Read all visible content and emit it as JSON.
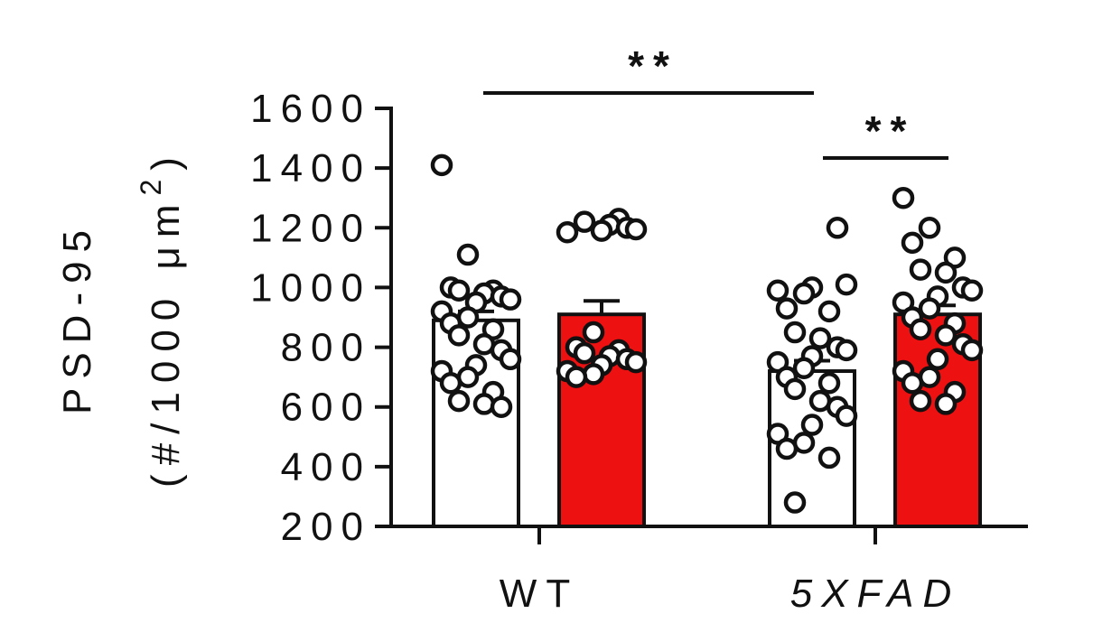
{
  "chart_data": {
    "type": "bar",
    "ylabel_line1": "PSD-95",
    "ylabel_line2_prefix": "(#/1000 μm",
    "ylabel_superscript": "2",
    "ylabel_line2_suffix": ")",
    "yticks": [
      "200",
      "400",
      "600",
      "800",
      "1000",
      "1200",
      "1400",
      "1600"
    ],
    "ylim": [
      200,
      1600
    ],
    "categories": [
      "WT",
      "5XFAD"
    ],
    "category_italic": [
      false,
      true
    ],
    "colors": {
      "white_bar": "#ffffff",
      "red_bar": "#ee1111",
      "stroke": "#111111"
    },
    "bars": [
      {
        "group": 0,
        "fill": "white",
        "mean": 890,
        "sem": 30,
        "points": [
          1410,
          1110,
          1000,
          990,
          990,
          980,
          970,
          960,
          950,
          920,
          900,
          880,
          860,
          840,
          810,
          790,
          760,
          740,
          720,
          700,
          680,
          650,
          620,
          610,
          600
        ]
      },
      {
        "group": 0,
        "fill": "red",
        "mean": 910,
        "sem": 45,
        "points": [
          1230,
          1220,
          1210,
          1200,
          1195,
          1190,
          1185,
          850,
          800,
          790,
          780,
          770,
          760,
          750,
          740,
          720,
          710,
          700
        ]
      },
      {
        "group": 1,
        "fill": "white",
        "mean": 720,
        "sem": 35,
        "points": [
          1200,
          1010,
          1000,
          990,
          980,
          930,
          920,
          850,
          830,
          800,
          790,
          770,
          750,
          730,
          700,
          680,
          660,
          620,
          600,
          570,
          540,
          510,
          480,
          460,
          430,
          280
        ]
      },
      {
        "group": 1,
        "fill": "red",
        "mean": 910,
        "sem": 30,
        "points": [
          1300,
          1200,
          1150,
          1100,
          1060,
          1050,
          1000,
          990,
          970,
          950,
          930,
          900,
          880,
          860,
          840,
          810,
          790,
          760,
          720,
          700,
          680,
          650,
          620,
          610
        ]
      }
    ],
    "significance": [
      {
        "label": "**",
        "from_bar": 0,
        "to_bar": 2,
        "level": 1
      },
      {
        "label": "**",
        "from_bar": 2,
        "to_bar": 3,
        "level": 0
      }
    ]
  }
}
